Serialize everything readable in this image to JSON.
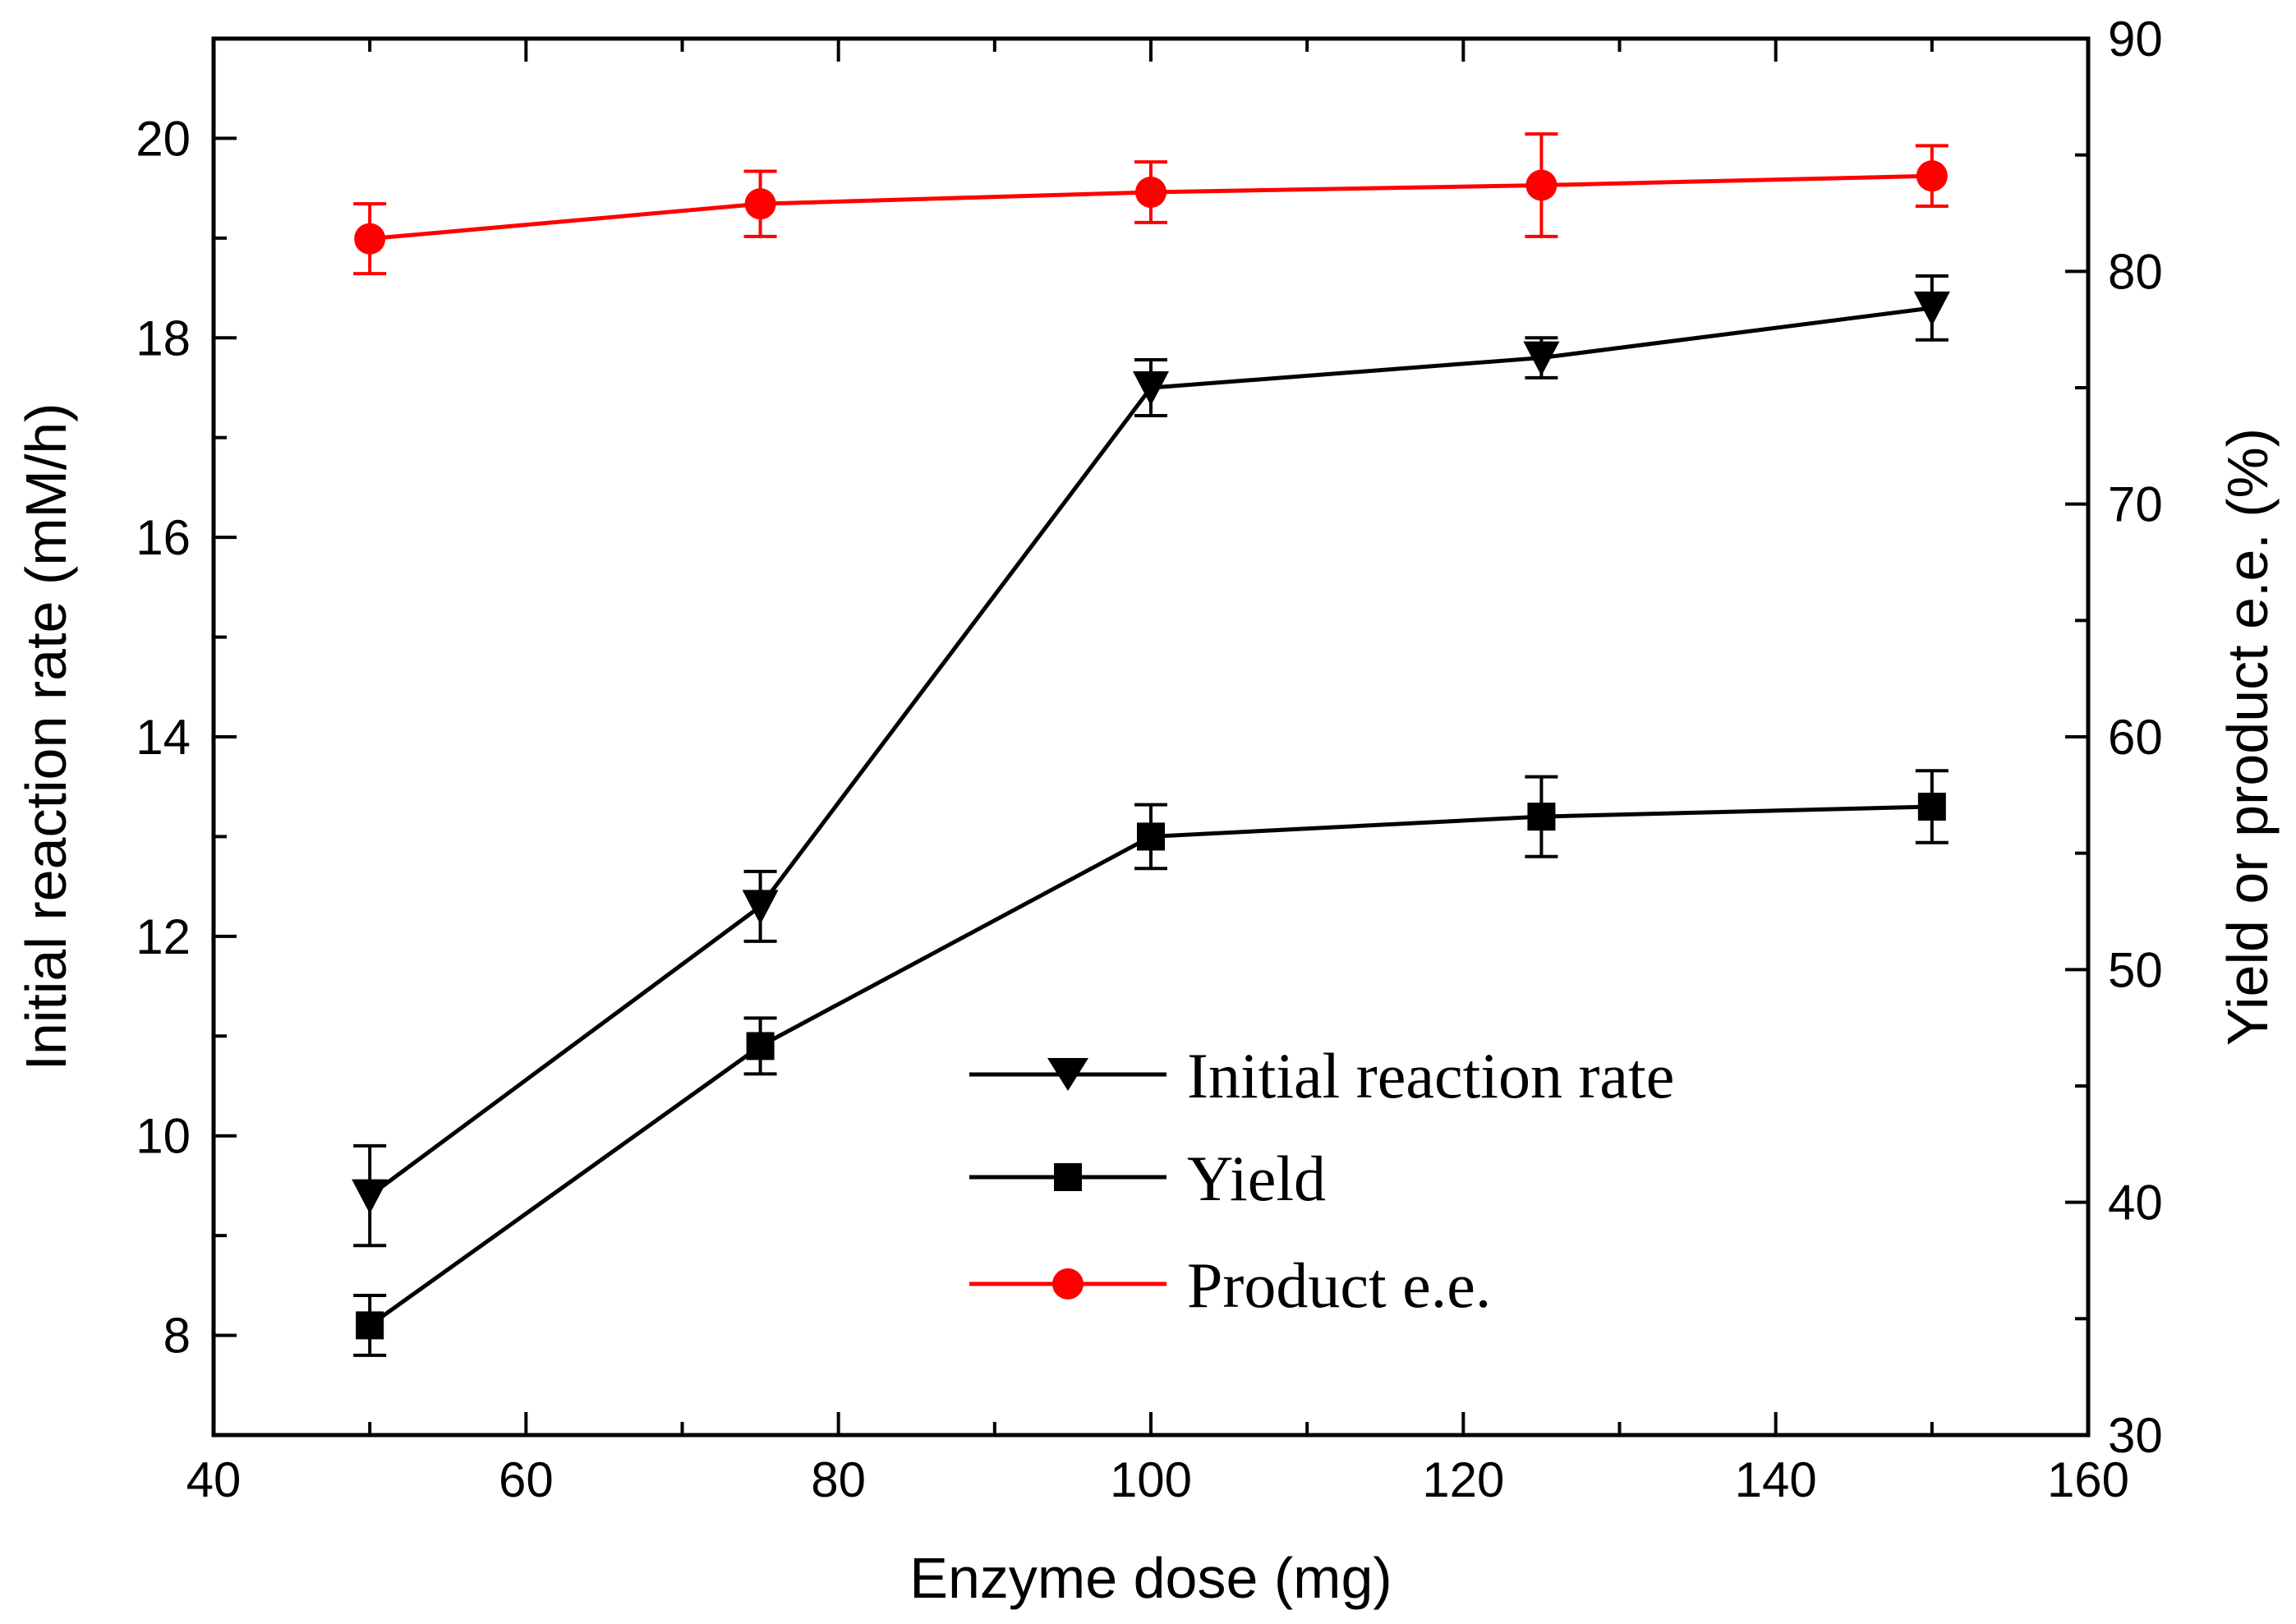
{
  "chart_data": {
    "type": "line",
    "title": "",
    "xlabel": "Enzyme dose (mg)",
    "ylabel_left": "Initial reaction rate (mM/h)",
    "ylabel_right": "Yield or product e.e. (%)",
    "xlim": [
      40,
      160
    ],
    "ylim_left": [
      7,
      21
    ],
    "ylim_right": [
      30,
      90
    ],
    "x_ticks": [
      "40",
      "60",
      "80",
      "100",
      "120",
      "140",
      "160"
    ],
    "y_left_ticks": [
      "8",
      "10",
      "12",
      "14",
      "16",
      "18",
      "20"
    ],
    "y_right_ticks": [
      "30",
      "40",
      "50",
      "60",
      "70",
      "80",
      "90"
    ],
    "grid": false,
    "legend_position": "lower-center",
    "x": [
      50,
      75,
      100,
      125,
      150
    ],
    "series": [
      {
        "name": "Initial reaction rate",
        "axis": "left",
        "marker": "triangle-down",
        "color": "#000000",
        "values": [
          9.4,
          12.3,
          17.5,
          17.8,
          18.3
        ],
        "errors": [
          0.5,
          0.35,
          0.28,
          0.2,
          0.32
        ]
      },
      {
        "name": "Yield",
        "axis": "left",
        "marker": "square",
        "color": "#000000",
        "values": [
          8.1,
          10.9,
          13.0,
          13.2,
          13.3
        ],
        "errors": [
          0.3,
          0.28,
          0.32,
          0.4,
          0.36
        ]
      },
      {
        "name": "Product e.e.",
        "axis": "right",
        "marker": "circle",
        "color": "#ff0000",
        "values": [
          81.4,
          82.9,
          83.4,
          83.7,
          84.1
        ],
        "errors": [
          1.5,
          1.4,
          1.3,
          2.2,
          1.3
        ]
      }
    ]
  }
}
